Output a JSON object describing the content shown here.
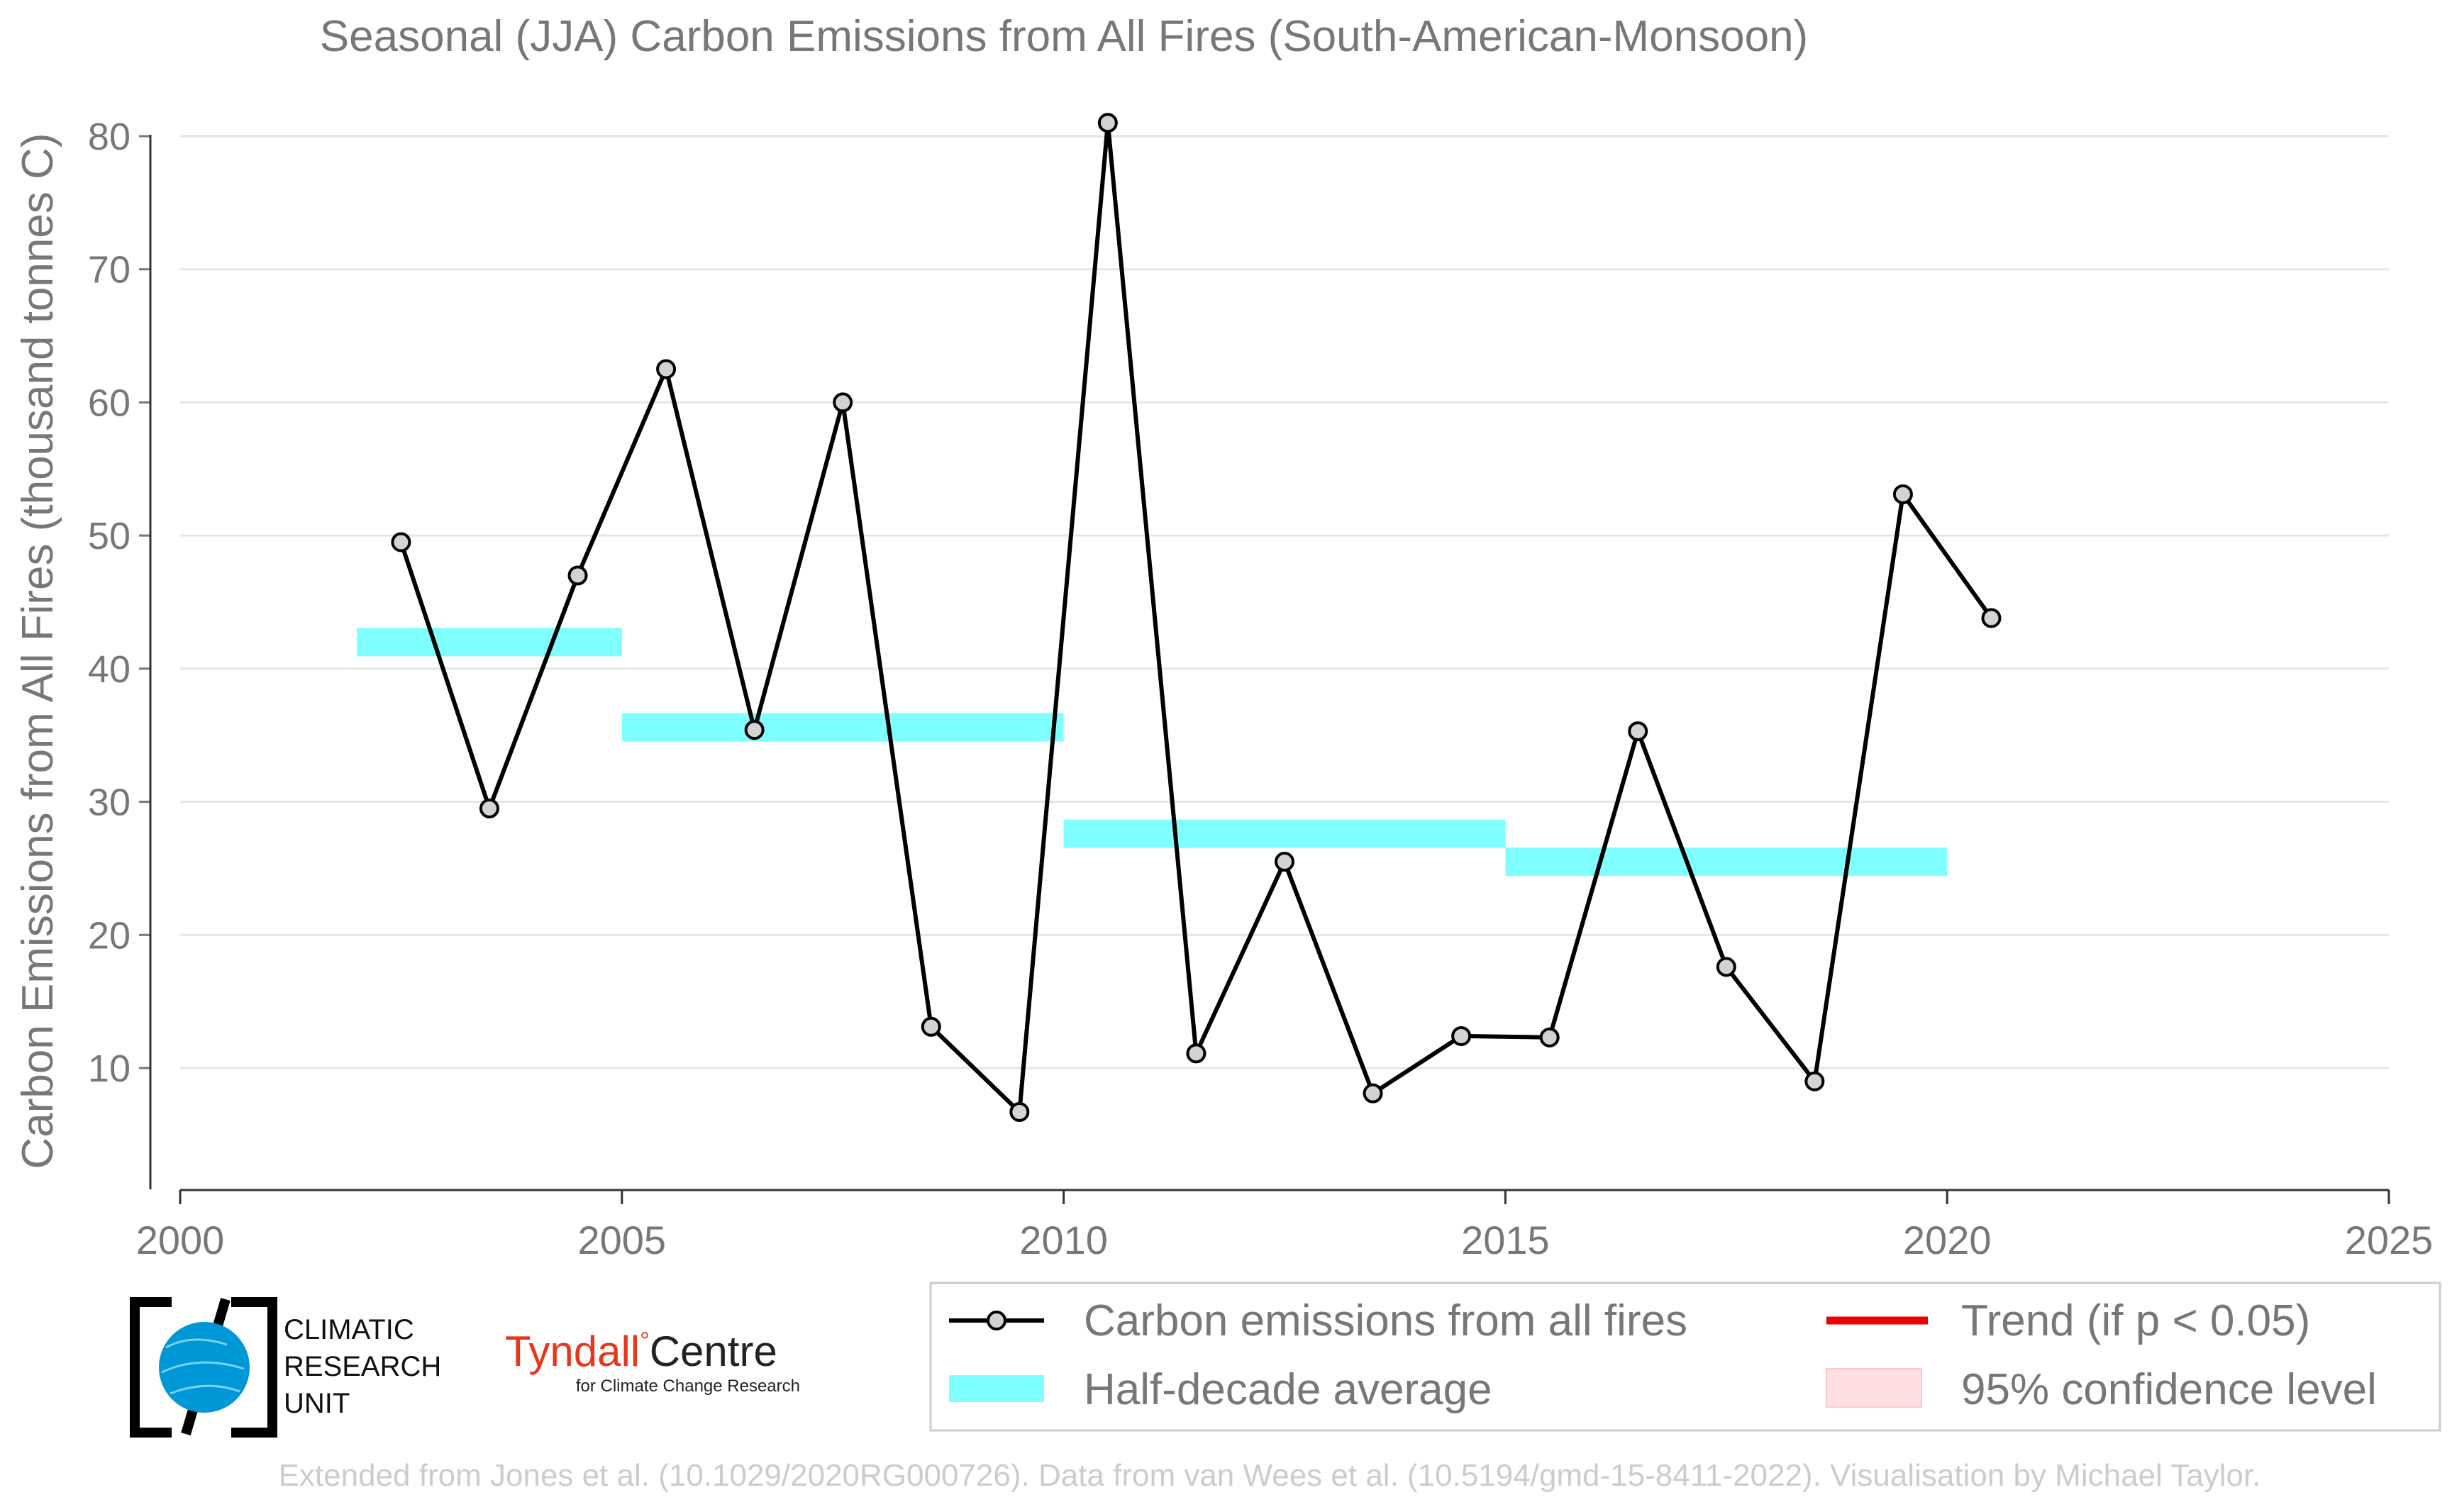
{
  "chart_data": {
    "type": "line",
    "title": "Seasonal (JJA) Carbon Emissions from All Fires (South-American-Monsoon)",
    "xlabel": "",
    "ylabel": "Carbon Emissions from All Fires (thousand tonnes C)",
    "xlim": [
      2000,
      2025
    ],
    "ylim": [
      1,
      82
    ],
    "xticks": [
      "2000",
      "2005",
      "2010",
      "2015",
      "2020",
      "2025"
    ],
    "yticks": [
      "10",
      "20",
      "30",
      "40",
      "50",
      "60",
      "70",
      "80"
    ],
    "grid": "horizontal",
    "series": [
      {
        "name": "Carbon emissions from all fires",
        "x": [
          2002.5,
          2003.5,
          2004.5,
          2005.5,
          2006.5,
          2007.5,
          2008.5,
          2009.5,
          2010.5,
          2011.5,
          2012.5,
          2013.5,
          2014.5,
          2015.5,
          2016.5,
          2017.5,
          2018.5,
          2019.5,
          2020.5
        ],
        "values": [
          49.5,
          29.5,
          47.0,
          62.5,
          35.4,
          60.0,
          13.1,
          6.7,
          81.0,
          11.1,
          25.5,
          8.1,
          12.4,
          12.3,
          35.3,
          17.6,
          9.0,
          53.1,
          43.8
        ],
        "color": "#000000",
        "marker_fill": "#d3d3d3"
      },
      {
        "name": "Half-decade average",
        "color": "#7fffff",
        "segments": [
          {
            "x0": 2002,
            "x1": 2005,
            "value": 42.0
          },
          {
            "x0": 2005,
            "x1": 2010,
            "value": 35.6
          },
          {
            "x0": 2010,
            "x1": 2015,
            "value": 27.6
          },
          {
            "x0": 2015,
            "x1": 2020,
            "value": 25.5
          }
        ]
      }
    ],
    "legend": {
      "placement": "bottom-right",
      "items": [
        {
          "label": "Carbon emissions from all fires",
          "kind": "line-marker",
          "color": "#000000"
        },
        {
          "label": "Trend (if p < 0.05)",
          "kind": "line",
          "color": "#ee0000"
        },
        {
          "label": "Half-decade average",
          "kind": "band",
          "color": "#7fffff"
        },
        {
          "label": "95% confidence level",
          "kind": "patch",
          "color": "#ffe0e0"
        }
      ]
    }
  },
  "logos": {
    "cru": {
      "lines": [
        "CLIMATIC",
        "RESEARCH",
        "UNIT"
      ],
      "color": "#0097d7"
    },
    "tyndall": {
      "name_part": "Tyndall",
      "degree": "°",
      "centre_part": "Centre",
      "tagline": "for Climate Change Research",
      "accent": "#e8361c"
    }
  },
  "footer": "Extended from Jones et al. (10.1029/2020RG000726). Data from van Wees et al. (10.5194/gmd-15-8411-2022). Visualisation by Michael Taylor."
}
